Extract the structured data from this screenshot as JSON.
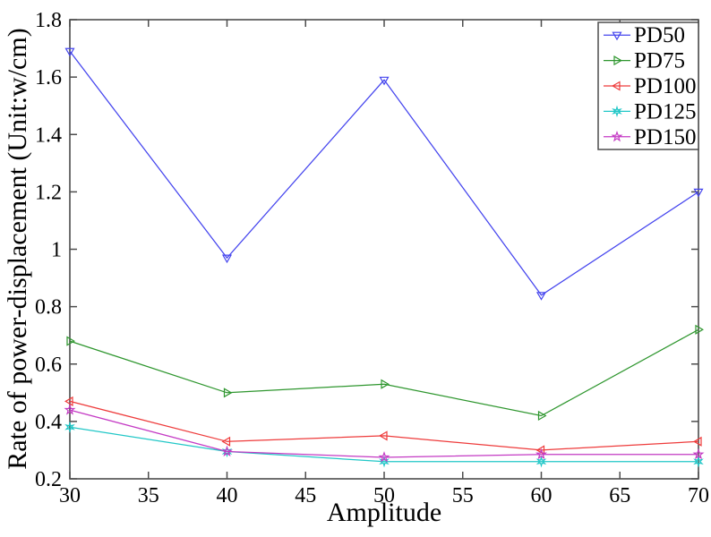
{
  "chart_data": {
    "type": "line",
    "title": "",
    "xlabel": "Amplitude",
    "ylabel": "Rate of power-displacement (Unit:w/cm)",
    "x": [
      30,
      40,
      50,
      60,
      70
    ],
    "series": [
      {
        "name": "PD50",
        "color": "#4444ee",
        "marker": "triangle-down",
        "values": [
          1.69,
          0.97,
          1.59,
          0.84,
          1.2
        ]
      },
      {
        "name": "PD75",
        "color": "#2e962e",
        "marker": "triangle-right",
        "values": [
          0.68,
          0.5,
          0.53,
          0.42,
          0.72
        ]
      },
      {
        "name": "PD100",
        "color": "#ee3b3b",
        "marker": "triangle-left",
        "values": [
          0.47,
          0.33,
          0.35,
          0.3,
          0.33
        ]
      },
      {
        "name": "PD125",
        "color": "#21c7c7",
        "marker": "star6",
        "values": [
          0.38,
          0.295,
          0.26,
          0.26,
          0.26
        ]
      },
      {
        "name": "PD150",
        "color": "#c43ac4",
        "marker": "star5",
        "values": [
          0.44,
          0.295,
          0.275,
          0.285,
          0.285
        ]
      }
    ],
    "xlim": [
      30,
      70
    ],
    "ylim": [
      0.2,
      1.8
    ],
    "xticks": [
      30,
      35,
      40,
      45,
      50,
      55,
      60,
      65,
      70
    ],
    "yticks": [
      0.2,
      0.4,
      0.6,
      0.8,
      1.0,
      1.2,
      1.4,
      1.6,
      1.8
    ],
    "ytick_labels": [
      "0.2",
      "0.4",
      "0.6",
      "0.8",
      "1",
      "1.2",
      "1.4",
      "1.6",
      "1.8"
    ],
    "grid": false,
    "legend_position": "top-right",
    "legend_labels": [
      "PD50",
      "PD75",
      "PD100",
      "PD125",
      "PD150"
    ],
    "axis_color": "#4d4d4d",
    "text_color": "#000000",
    "background_color": "#ffffff"
  }
}
